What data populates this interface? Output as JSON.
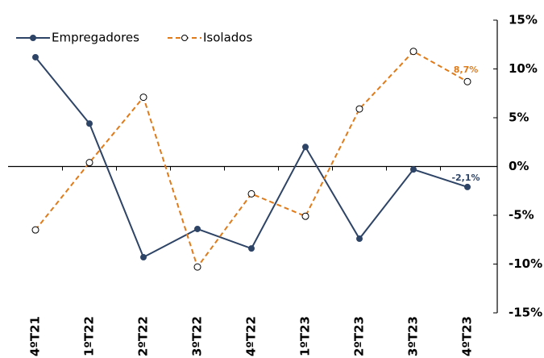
{
  "chart_data": {
    "type": "line",
    "categories": [
      "4ºT21",
      "1ºT22",
      "2ºT22",
      "3ºT22",
      "4ºT22",
      "1ºT23",
      "2ºT23",
      "3ºT23",
      "4ºT23"
    ],
    "series": [
      {
        "name": "Empregadores",
        "color": "#2e4466",
        "dashed": false,
        "values": [
          11.2,
          4.4,
          -9.3,
          -6.4,
          -8.4,
          2.0,
          -7.4,
          -0.3,
          -2.1
        ],
        "value_labels": [
          null,
          null,
          null,
          null,
          null,
          null,
          null,
          null,
          "-2,1%"
        ]
      },
      {
        "name": "Isolados",
        "color": "#e07b1a",
        "dashed": true,
        "values": [
          -6.5,
          0.4,
          7.1,
          -10.3,
          -2.8,
          -5.1,
          5.9,
          11.8,
          8.7
        ],
        "value_labels": [
          null,
          null,
          null,
          null,
          null,
          null,
          null,
          null,
          "8,7%"
        ]
      }
    ],
    "ylim": [
      -15,
      15
    ],
    "yticks": [
      {
        "value": 15,
        "label": "15%"
      },
      {
        "value": 10,
        "label": "10%"
      },
      {
        "value": 5,
        "label": "5%"
      },
      {
        "value": 0,
        "label": "0%"
      },
      {
        "value": -5,
        "label": "-5%"
      },
      {
        "value": -10,
        "label": "-10%"
      },
      {
        "value": -15,
        "label": "-15%"
      }
    ],
    "legend": "top-left"
  }
}
